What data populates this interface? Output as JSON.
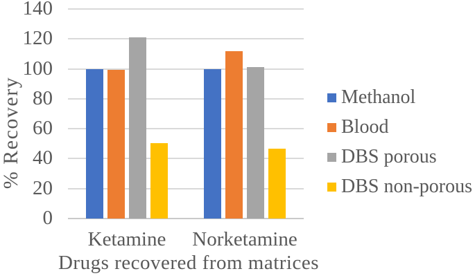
{
  "chart_data": {
    "type": "bar",
    "title": "",
    "categories": [
      "Ketamine",
      "Norketamine"
    ],
    "series": [
      {
        "name": "Methanol",
        "color": "#4472C4",
        "values": [
          100,
          100
        ]
      },
      {
        "name": "Blood",
        "color": "#ED7D31",
        "values": [
          99.5,
          112
        ]
      },
      {
        "name": "DBS porous",
        "color": "#A5A5A5",
        "values": [
          121,
          101
        ]
      },
      {
        "name": "DBS non-porous",
        "color": "#FFC000",
        "values": [
          50.5,
          46.5
        ]
      }
    ],
    "xlabel": "Drugs recovered from matrices",
    "ylabel": "% Recovery",
    "ylim": [
      0,
      140
    ],
    "yticks": [
      0,
      20,
      40,
      60,
      80,
      100,
      120,
      140
    ],
    "grid": true,
    "legend_position": "right"
  },
  "colors": {
    "text": "#595959",
    "gridline": "#D9D9D9",
    "axis_line": "#C9C9C9",
    "background": "#FFFFFF"
  }
}
